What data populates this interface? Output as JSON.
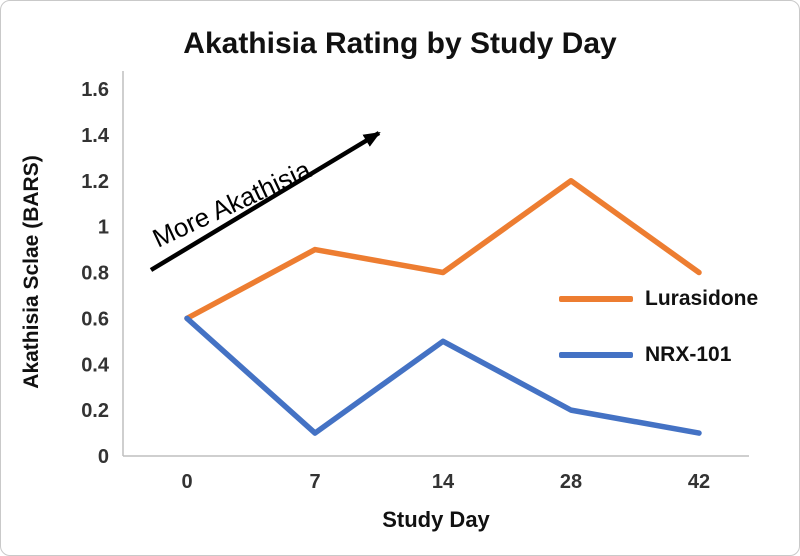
{
  "chart_data": {
    "type": "line",
    "title": "Akathisia Rating by Study Day",
    "xlabel": "Study Day",
    "ylabel": "Akathisia Sclae (BARS)",
    "annotation": "More Akathisia",
    "categories": [
      "0",
      "7",
      "14",
      "28",
      "42"
    ],
    "yticks": [
      0,
      0.2,
      0.4,
      0.6,
      0.8,
      1,
      1.2,
      1.4,
      1.6
    ],
    "ylim": [
      0,
      1.6
    ],
    "grid": false,
    "legend_position": "right-middle",
    "axis_color": "#bfbfbf",
    "annotation_color": "#000000",
    "series": [
      {
        "name": "Lurasidone",
        "color": "#ED7D31",
        "values": [
          0.6,
          0.9,
          0.8,
          1.2,
          0.8
        ]
      },
      {
        "name": "NRX-101",
        "color": "#4472C4",
        "values": [
          0.6,
          0.1,
          0.5,
          0.2,
          0.1
        ]
      }
    ]
  }
}
